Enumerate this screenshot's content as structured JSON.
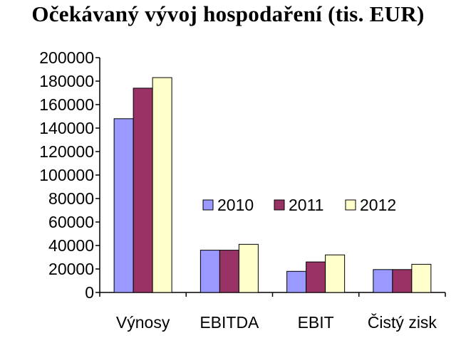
{
  "chart_data": {
    "type": "bar",
    "title": "Očekávaný vývoj hospodaření (tis. EUR)",
    "categories": [
      "Výnosy",
      "EBITDA",
      "EBIT",
      "Čistý zisk"
    ],
    "series": [
      {
        "name": "2010",
        "values": [
          148000,
          36000,
          18000,
          19500
        ],
        "color": "#9999ff"
      },
      {
        "name": "2011",
        "values": [
          174000,
          36000,
          26000,
          19500
        ],
        "color": "#993366"
      },
      {
        "name": "2012",
        "values": [
          183000,
          41000,
          32000,
          24000
        ],
        "color": "#ffffcc"
      }
    ],
    "ylim": [
      0,
      200000
    ],
    "yticks": [
      "0",
      "20000",
      "40000",
      "60000",
      "80000",
      "100000",
      "120000",
      "140000",
      "160000",
      "180000",
      "200000"
    ],
    "legend": "inside-right",
    "grid": false
  }
}
